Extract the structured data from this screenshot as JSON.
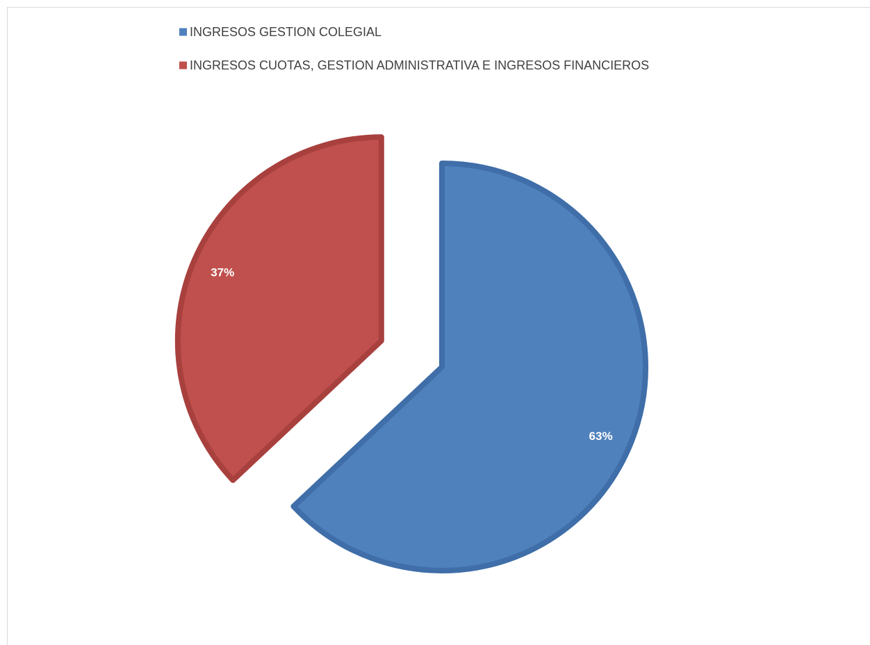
{
  "chart_data": {
    "type": "pie",
    "title": "",
    "series": [
      {
        "values": [
          63,
          37
        ]
      }
    ],
    "categories": [
      "INGRESOS GESTION COLEGIAL",
      "INGRESOS CUOTAS, GESTION ADMINISTRATIVA E INGRESOS FINANCIEROS"
    ],
    "data_labels": [
      "63%",
      "37%"
    ],
    "colors": [
      "#4f81bd",
      "#c0504d"
    ],
    "border_colors": [
      "#3f6ea8",
      "#a8403e"
    ],
    "exploded_slice": 1,
    "legend_position": "top"
  }
}
